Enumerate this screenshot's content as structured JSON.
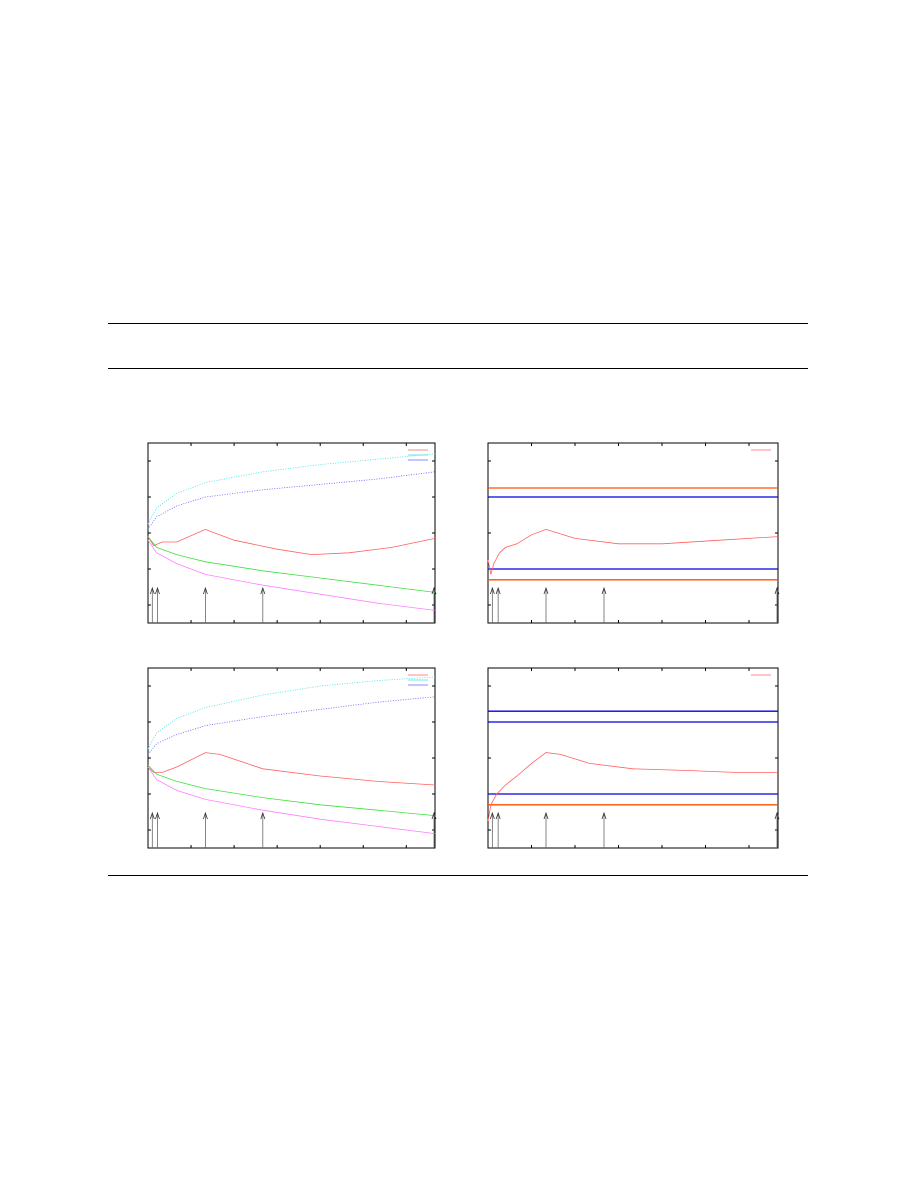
{
  "chart_data": [
    {
      "type": "line",
      "panel": "top-left",
      "xlim": [
        0,
        1
      ],
      "ylim": [
        0,
        1
      ],
      "grid": false,
      "legend": "top-right",
      "series": [
        {
          "color": "#ff6060",
          "style": "solid",
          "x": [
            0,
            0.02,
            0.05,
            0.1,
            0.2,
            0.3,
            0.45,
            0.57,
            0.7,
            0.85,
            1
          ],
          "y": [
            0.48,
            0.43,
            0.45,
            0.45,
            0.52,
            0.46,
            0.41,
            0.38,
            0.39,
            0.42,
            0.47
          ]
        },
        {
          "color": "#40e0e0",
          "style": "dotted",
          "x": [
            0,
            0.03,
            0.1,
            0.2,
            0.4,
            0.6,
            0.8,
            1
          ],
          "y": [
            0.55,
            0.64,
            0.72,
            0.78,
            0.84,
            0.88,
            0.91,
            0.94
          ]
        },
        {
          "color": "#6060ff",
          "style": "dotted",
          "x": [
            0,
            0.03,
            0.1,
            0.2,
            0.4,
            0.6,
            0.8,
            1
          ],
          "y": [
            0.52,
            0.59,
            0.65,
            0.7,
            0.74,
            0.77,
            0.8,
            0.84
          ]
        },
        {
          "color": "#40e040",
          "style": "solid",
          "x": [
            0,
            0.03,
            0.1,
            0.2,
            0.4,
            0.6,
            0.8,
            1
          ],
          "y": [
            0.48,
            0.42,
            0.38,
            0.34,
            0.29,
            0.25,
            0.21,
            0.17
          ]
        },
        {
          "color": "#ff80ff",
          "style": "solid",
          "x": [
            0,
            0.03,
            0.1,
            0.2,
            0.4,
            0.6,
            0.8,
            1
          ],
          "y": [
            0.46,
            0.39,
            0.33,
            0.27,
            0.21,
            0.16,
            0.11,
            0.07
          ]
        }
      ],
      "arrows_x": [
        0.015,
        0.033,
        0.2,
        0.4,
        1.0
      ]
    },
    {
      "type": "line",
      "panel": "top-right",
      "xlim": [
        0,
        1
      ],
      "ylim": [
        0,
        1
      ],
      "grid": false,
      "legend": "top-right",
      "hlines": [
        {
          "y": 0.75,
          "color": "#ff5000"
        },
        {
          "y": 0.7,
          "color": "#0000e0"
        },
        {
          "y": 0.3,
          "color": "#0000e0"
        },
        {
          "y": 0.24,
          "color": "#ff5000"
        }
      ],
      "series": [
        {
          "color": "#ff6060",
          "style": "solid",
          "x": [
            0,
            0.01,
            0.02,
            0.04,
            0.06,
            0.1,
            0.15,
            0.2,
            0.3,
            0.45,
            0.6,
            0.8,
            1
          ],
          "y": [
            0.35,
            0.27,
            0.33,
            0.39,
            0.42,
            0.44,
            0.49,
            0.52,
            0.47,
            0.44,
            0.44,
            0.46,
            0.48
          ]
        }
      ],
      "arrows_x": [
        0.015,
        0.035,
        0.2,
        0.4,
        1.0
      ]
    },
    {
      "type": "line",
      "panel": "bottom-left",
      "xlim": [
        0,
        1
      ],
      "ylim": [
        0,
        1
      ],
      "grid": false,
      "legend": "top-right",
      "series": [
        {
          "color": "#ff6060",
          "style": "solid",
          "x": [
            0,
            0.02,
            0.05,
            0.1,
            0.2,
            0.25,
            0.4,
            0.6,
            0.8,
            1
          ],
          "y": [
            0.45,
            0.42,
            0.42,
            0.45,
            0.53,
            0.52,
            0.44,
            0.4,
            0.37,
            0.35
          ]
        },
        {
          "color": "#40e0e0",
          "style": "dotted",
          "x": [
            0,
            0.03,
            0.1,
            0.2,
            0.4,
            0.6,
            0.8,
            1
          ],
          "y": [
            0.55,
            0.64,
            0.72,
            0.78,
            0.85,
            0.9,
            0.93,
            0.95
          ]
        },
        {
          "color": "#6060ff",
          "style": "dotted",
          "x": [
            0,
            0.03,
            0.1,
            0.2,
            0.4,
            0.6,
            0.8,
            1
          ],
          "y": [
            0.52,
            0.58,
            0.63,
            0.68,
            0.73,
            0.77,
            0.81,
            0.84
          ]
        },
        {
          "color": "#40e040",
          "style": "solid",
          "x": [
            0,
            0.03,
            0.1,
            0.2,
            0.4,
            0.6,
            0.8,
            1
          ],
          "y": [
            0.46,
            0.41,
            0.37,
            0.33,
            0.28,
            0.24,
            0.21,
            0.18
          ]
        },
        {
          "color": "#ff80ff",
          "style": "solid",
          "x": [
            0,
            0.03,
            0.1,
            0.2,
            0.4,
            0.6,
            0.8,
            1
          ],
          "y": [
            0.45,
            0.38,
            0.32,
            0.27,
            0.21,
            0.16,
            0.12,
            0.08
          ]
        }
      ],
      "arrows_x": [
        0.015,
        0.033,
        0.2,
        0.4,
        1.0
      ]
    },
    {
      "type": "line",
      "panel": "bottom-right",
      "xlim": [
        0,
        1
      ],
      "ylim": [
        0,
        1
      ],
      "grid": false,
      "legend": "top-right",
      "hlines": [
        {
          "y": 0.76,
          "color": "#0000e0"
        },
        {
          "y": 0.7,
          "color": "#0000e0"
        },
        {
          "y": 0.3,
          "color": "#0000e0"
        },
        {
          "y": 0.24,
          "color": "#ff5000"
        }
      ],
      "series": [
        {
          "color": "#ff6060",
          "style": "solid",
          "x": [
            0,
            0.01,
            0.03,
            0.06,
            0.1,
            0.15,
            0.2,
            0.25,
            0.35,
            0.5,
            0.7,
            0.85,
            1
          ],
          "y": [
            0.15,
            0.24,
            0.3,
            0.35,
            0.4,
            0.47,
            0.53,
            0.52,
            0.47,
            0.44,
            0.43,
            0.42,
            0.42
          ]
        }
      ],
      "arrows_x": [
        0.015,
        0.035,
        0.2,
        0.4,
        1.0
      ]
    }
  ]
}
